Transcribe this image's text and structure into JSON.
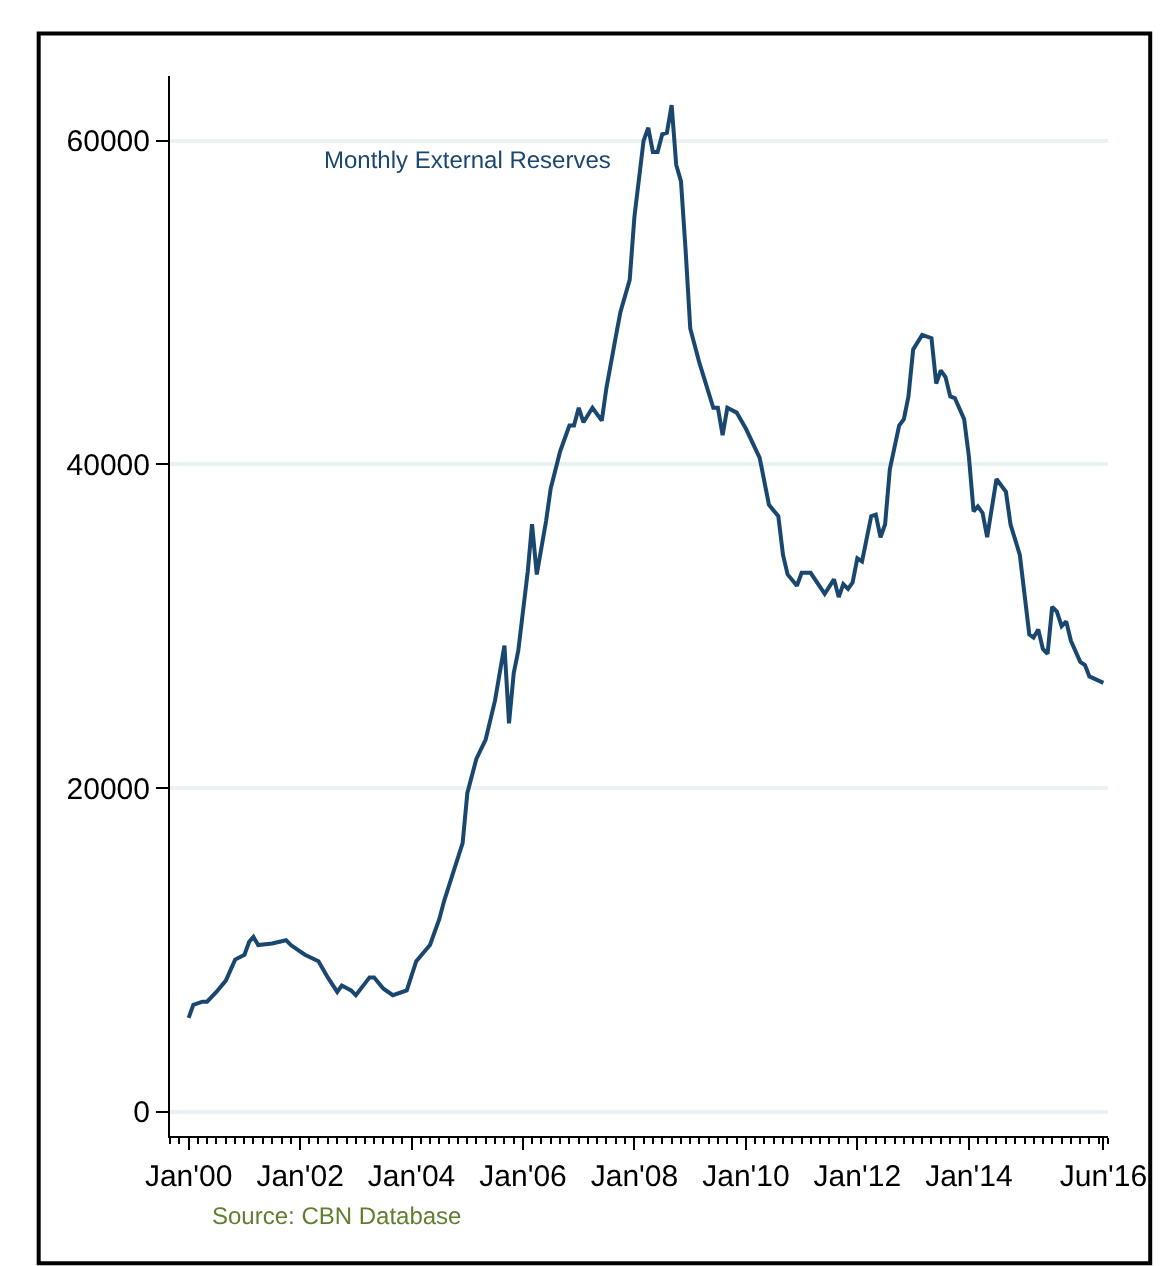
{
  "chart_data": {
    "type": "line",
    "x": [
      "2000-01",
      "2000-02",
      "2000-04",
      "2000-05",
      "2000-07",
      "2000-09",
      "2000-11",
      "2001-01",
      "2001-02",
      "2001-03",
      "2001-04",
      "2001-07",
      "2001-10",
      "2001-11",
      "2002-02",
      "2002-05",
      "2002-07",
      "2002-09",
      "2002-10",
      "2002-12",
      "2003-01",
      "2003-04",
      "2003-05",
      "2003-07",
      "2003-09",
      "2003-12",
      "2004-02",
      "2004-05",
      "2004-07",
      "2004-08",
      "2004-10",
      "2004-12",
      "2005-01",
      "2005-03",
      "2005-05",
      "2005-07",
      "2005-09",
      "2005-10",
      "2005-11",
      "2005-12",
      "2006-02",
      "2006-03",
      "2006-04",
      "2006-06",
      "2006-07",
      "2006-09",
      "2006-11",
      "2006-12",
      "2007-01",
      "2007-02",
      "2007-04",
      "2007-06",
      "2007-07",
      "2007-09",
      "2007-10",
      "2007-12",
      "2008-01",
      "2008-03",
      "2008-04",
      "2008-05",
      "2008-06",
      "2008-07",
      "2008-08",
      "2008-09",
      "2008-10",
      "2008-11",
      "2008-12",
      "2009-01",
      "2009-03",
      "2009-06",
      "2009-07",
      "2009-08",
      "2009-09",
      "2009-11",
      "2010-01",
      "2010-04",
      "2010-06",
      "2010-08",
      "2010-09",
      "2010-10",
      "2010-12",
      "2011-01",
      "2011-03",
      "2011-06",
      "2011-08",
      "2011-09",
      "2011-10",
      "2011-11",
      "2011-12",
      "2012-01",
      "2012-02",
      "2012-04",
      "2012-05",
      "2012-06",
      "2012-07",
      "2012-08",
      "2012-10",
      "2012-11",
      "2012-12",
      "2013-01",
      "2013-03",
      "2013-05",
      "2013-06",
      "2013-07",
      "2013-08",
      "2013-09",
      "2013-10",
      "2013-12",
      "2014-01",
      "2014-02",
      "2014-03",
      "2014-04",
      "2014-05",
      "2014-07",
      "2014-09",
      "2014-10",
      "2014-12",
      "2015-02",
      "2015-03",
      "2015-04",
      "2015-05",
      "2015-06",
      "2015-07",
      "2015-08",
      "2015-09",
      "2015-10",
      "2015-11",
      "2016-01",
      "2016-02",
      "2016-03",
      "2016-06"
    ],
    "series": [
      {
        "name": "Monthly External Reserves",
        "color": "#1a476f",
        "values": [
          5800,
          6600,
          6800,
          6800,
          7400,
          8100,
          9400,
          9700,
          10500,
          10800,
          10300,
          10400,
          10600,
          10300,
          9700,
          9300,
          8300,
          7400,
          7800,
          7500,
          7200,
          8300,
          8300,
          7600,
          7200,
          7500,
          9300,
          10300,
          11900,
          13000,
          14800,
          16600,
          19700,
          21800,
          23000,
          25400,
          28800,
          24000,
          27100,
          28500,
          33400,
          36300,
          33200,
          36500,
          38500,
          40800,
          42400,
          42400,
          43500,
          42600,
          43500,
          42700,
          44700,
          47900,
          49400,
          51400,
          55300,
          60000,
          60800,
          59300,
          59300,
          60400,
          60500,
          62200,
          58500,
          57500,
          53300,
          48400,
          46300,
          43500,
          43500,
          41800,
          43500,
          43200,
          42200,
          40400,
          37500,
          36800,
          34400,
          33200,
          32500,
          33300,
          33300,
          32000,
          32900,
          31800,
          32600,
          32300,
          32700,
          34200,
          34000,
          36800,
          36900,
          35500,
          36300,
          39700,
          42400,
          42800,
          44200,
          47100,
          48000,
          47800,
          45000,
          45800,
          45400,
          44200,
          44100,
          42800,
          40500,
          37100,
          37400,
          37000,
          35500,
          39100,
          38300,
          36300,
          34400,
          29500,
          29300,
          29800,
          28600,
          28300,
          31200,
          30900,
          30000,
          30300,
          29100,
          27800,
          27600,
          26900,
          26500
        ]
      }
    ],
    "xlim": [
      "1999-09",
      "2016-07"
    ],
    "xticks": [
      {
        "value": "2000-01",
        "label": "Jan'00"
      },
      {
        "value": "2002-01",
        "label": "Jan'02"
      },
      {
        "value": "2004-01",
        "label": "Jan'04"
      },
      {
        "value": "2006-01",
        "label": "Jan'06"
      },
      {
        "value": "2008-01",
        "label": "Jan'08"
      },
      {
        "value": "2010-01",
        "label": "Jan'10"
      },
      {
        "value": "2012-01",
        "label": "Jan'12"
      },
      {
        "value": "2014-01",
        "label": "Jan'14"
      },
      {
        "value": "2016-06",
        "label": "Jun'16"
      }
    ],
    "ylim": [
      -1500,
      64000
    ],
    "yticks": [
      0,
      20000,
      40000,
      60000
    ],
    "grid": "y",
    "legend": false,
    "marker": "none",
    "line_style": "solid",
    "annotations": [
      "Source: CBN Database"
    ]
  }
}
